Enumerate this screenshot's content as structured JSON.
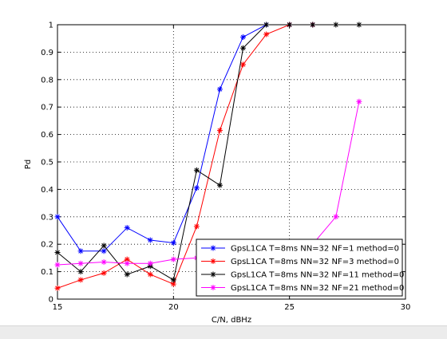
{
  "chart_data": {
    "type": "line",
    "title": "",
    "xlabel": "C/N, dBHz",
    "ylabel": "Pd",
    "xlim": [
      15,
      30
    ],
    "ylim": [
      0,
      1
    ],
    "xticks": [
      15,
      20,
      25,
      30
    ],
    "yticks": [
      0,
      0.1,
      0.2,
      0.3,
      0.4,
      0.5,
      0.6,
      0.7,
      0.8,
      0.9,
      1
    ],
    "grid": "dotted at 20 and 25 dBHz",
    "legend_position": "bottom-right",
    "series": [
      {
        "name": "GpsL1CA T=8ms NN=32 NF=1 method=0",
        "color": "#0000ff",
        "marker": "asterisk",
        "x": [
          15,
          16,
          17,
          18,
          19,
          20,
          21,
          22,
          23,
          24,
          25,
          26
        ],
        "y": [
          0.3,
          0.175,
          0.175,
          0.26,
          0.215,
          0.205,
          0.405,
          0.765,
          0.955,
          1.0,
          1.0,
          1.0
        ]
      },
      {
        "name": "GpsL1CA T=8ms NN=32 NF=3 method=0",
        "color": "#ff0000",
        "marker": "asterisk",
        "x": [
          15,
          16,
          17,
          18,
          19,
          20,
          21,
          22,
          23,
          24,
          25,
          26
        ],
        "y": [
          0.04,
          0.07,
          0.095,
          0.145,
          0.09,
          0.055,
          0.265,
          0.615,
          0.855,
          0.965,
          1.0,
          1.0
        ]
      },
      {
        "name": "GpsL1CA T=8ms NN=32 NF=11 method=0",
        "color": "#000000",
        "marker": "asterisk",
        "x": [
          15,
          16,
          17,
          18,
          19,
          20,
          21,
          22,
          23,
          24,
          25,
          26,
          27,
          28
        ],
        "y": [
          0.17,
          0.1,
          0.195,
          0.09,
          0.12,
          0.07,
          0.47,
          0.415,
          0.915,
          1.0,
          1.0,
          1.0,
          1.0,
          1.0
        ]
      },
      {
        "name": "GpsL1CA T=8ms NN=32 NF=21 method=0",
        "color": "#ff00ff",
        "marker": "asterisk",
        "x": [
          15,
          16,
          17,
          18,
          19,
          20,
          21,
          22,
          23,
          24,
          25,
          26,
          27,
          28
        ],
        "y": [
          0.125,
          0.13,
          0.135,
          0.13,
          0.13,
          0.145,
          0.15,
          0.16,
          0.165,
          0.17,
          0.18,
          0.2,
          0.3,
          0.72
        ]
      }
    ]
  }
}
